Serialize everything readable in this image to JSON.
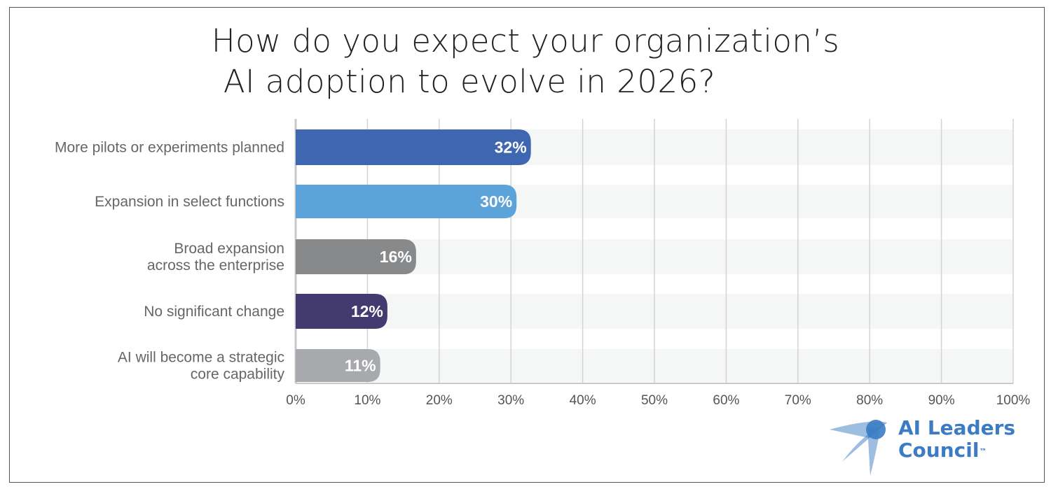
{
  "chart_data": {
    "type": "bar",
    "orientation": "horizontal",
    "title_lines": [
      "How do you expect your organization’s",
      "AI adoption to evolve in 2026?"
    ],
    "categories": [
      [
        "More pilots or experiments planned"
      ],
      [
        "Expansion in select functions"
      ],
      [
        "Broad expansion",
        "across the enterprise"
      ],
      [
        "No significant change"
      ],
      [
        "AI will become a strategic",
        "core capability"
      ]
    ],
    "values": [
      32,
      30,
      16,
      12,
      11
    ],
    "value_labels": [
      "32%",
      "30%",
      "16%",
      "12%",
      "11%"
    ],
    "colors": [
      "#3f67b1",
      "#5ba3d8",
      "#88898b",
      "#433a6f",
      "#a7a9ac"
    ],
    "xlim": [
      0,
      100
    ],
    "xticks": [
      "0%",
      "10%",
      "20%",
      "30%",
      "40%",
      "50%",
      "60%",
      "70%",
      "80%",
      "90%",
      "100%"
    ],
    "grid": true
  },
  "logo": {
    "line1": "AI Leaders",
    "line2": "Council",
    "tm": "™",
    "color": "#3c7cc4"
  }
}
